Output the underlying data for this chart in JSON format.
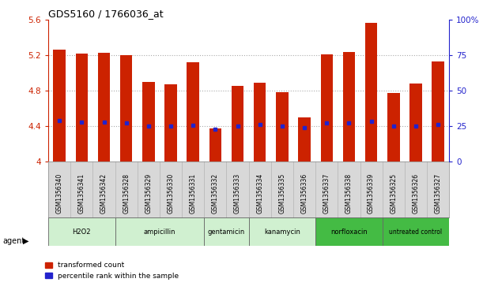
{
  "title": "GDS5160 / 1766036_at",
  "samples": [
    "GSM1356340",
    "GSM1356341",
    "GSM1356342",
    "GSM1356328",
    "GSM1356329",
    "GSM1356330",
    "GSM1356331",
    "GSM1356332",
    "GSM1356333",
    "GSM1356334",
    "GSM1356335",
    "GSM1356336",
    "GSM1356337",
    "GSM1356338",
    "GSM1356339",
    "GSM1356325",
    "GSM1356326",
    "GSM1356327"
  ],
  "bar_values": [
    5.26,
    5.22,
    5.23,
    5.2,
    4.9,
    4.87,
    5.12,
    4.37,
    4.85,
    4.89,
    4.78,
    4.5,
    5.21,
    5.24,
    5.57,
    4.77,
    4.88,
    5.13
  ],
  "percentile_values": [
    4.46,
    4.44,
    4.44,
    4.43,
    4.4,
    4.4,
    4.41,
    4.36,
    4.4,
    4.42,
    4.4,
    4.38,
    4.43,
    4.43,
    4.45,
    4.4,
    4.4,
    4.42
  ],
  "agents": [
    {
      "label": "H2O2",
      "start": 0,
      "end": 3,
      "color": "#d0f0d0"
    },
    {
      "label": "ampicillin",
      "start": 3,
      "end": 7,
      "color": "#d0f0d0"
    },
    {
      "label": "gentamicin",
      "start": 7,
      "end": 9,
      "color": "#d0f0d0"
    },
    {
      "label": "kanamycin",
      "start": 9,
      "end": 12,
      "color": "#d0f0d0"
    },
    {
      "label": "norfloxacin",
      "start": 12,
      "end": 15,
      "color": "#44bb44"
    },
    {
      "label": "untreated control",
      "start": 15,
      "end": 18,
      "color": "#44bb44"
    }
  ],
  "ylim_left": [
    4.0,
    5.6
  ],
  "ylim_right": [
    0,
    100
  ],
  "yticks_left": [
    4.0,
    4.4,
    4.8,
    5.2,
    5.6
  ],
  "yticks_right": [
    0,
    25,
    50,
    75,
    100
  ],
  "ytick_labels_left": [
    "4",
    "4.4",
    "4.8",
    "5.2",
    "5.6"
  ],
  "ytick_labels_right": [
    "0",
    "25",
    "50",
    "75",
    "100%"
  ],
  "bar_color": "#cc2200",
  "percentile_color": "#2222cc",
  "grid_color": "#888888",
  "left_axis_color": "#cc2200",
  "right_axis_color": "#2222cc",
  "sample_bg_color": "#d8d8d8",
  "legend_labels": [
    "transformed count",
    "percentile rank within the sample"
  ]
}
